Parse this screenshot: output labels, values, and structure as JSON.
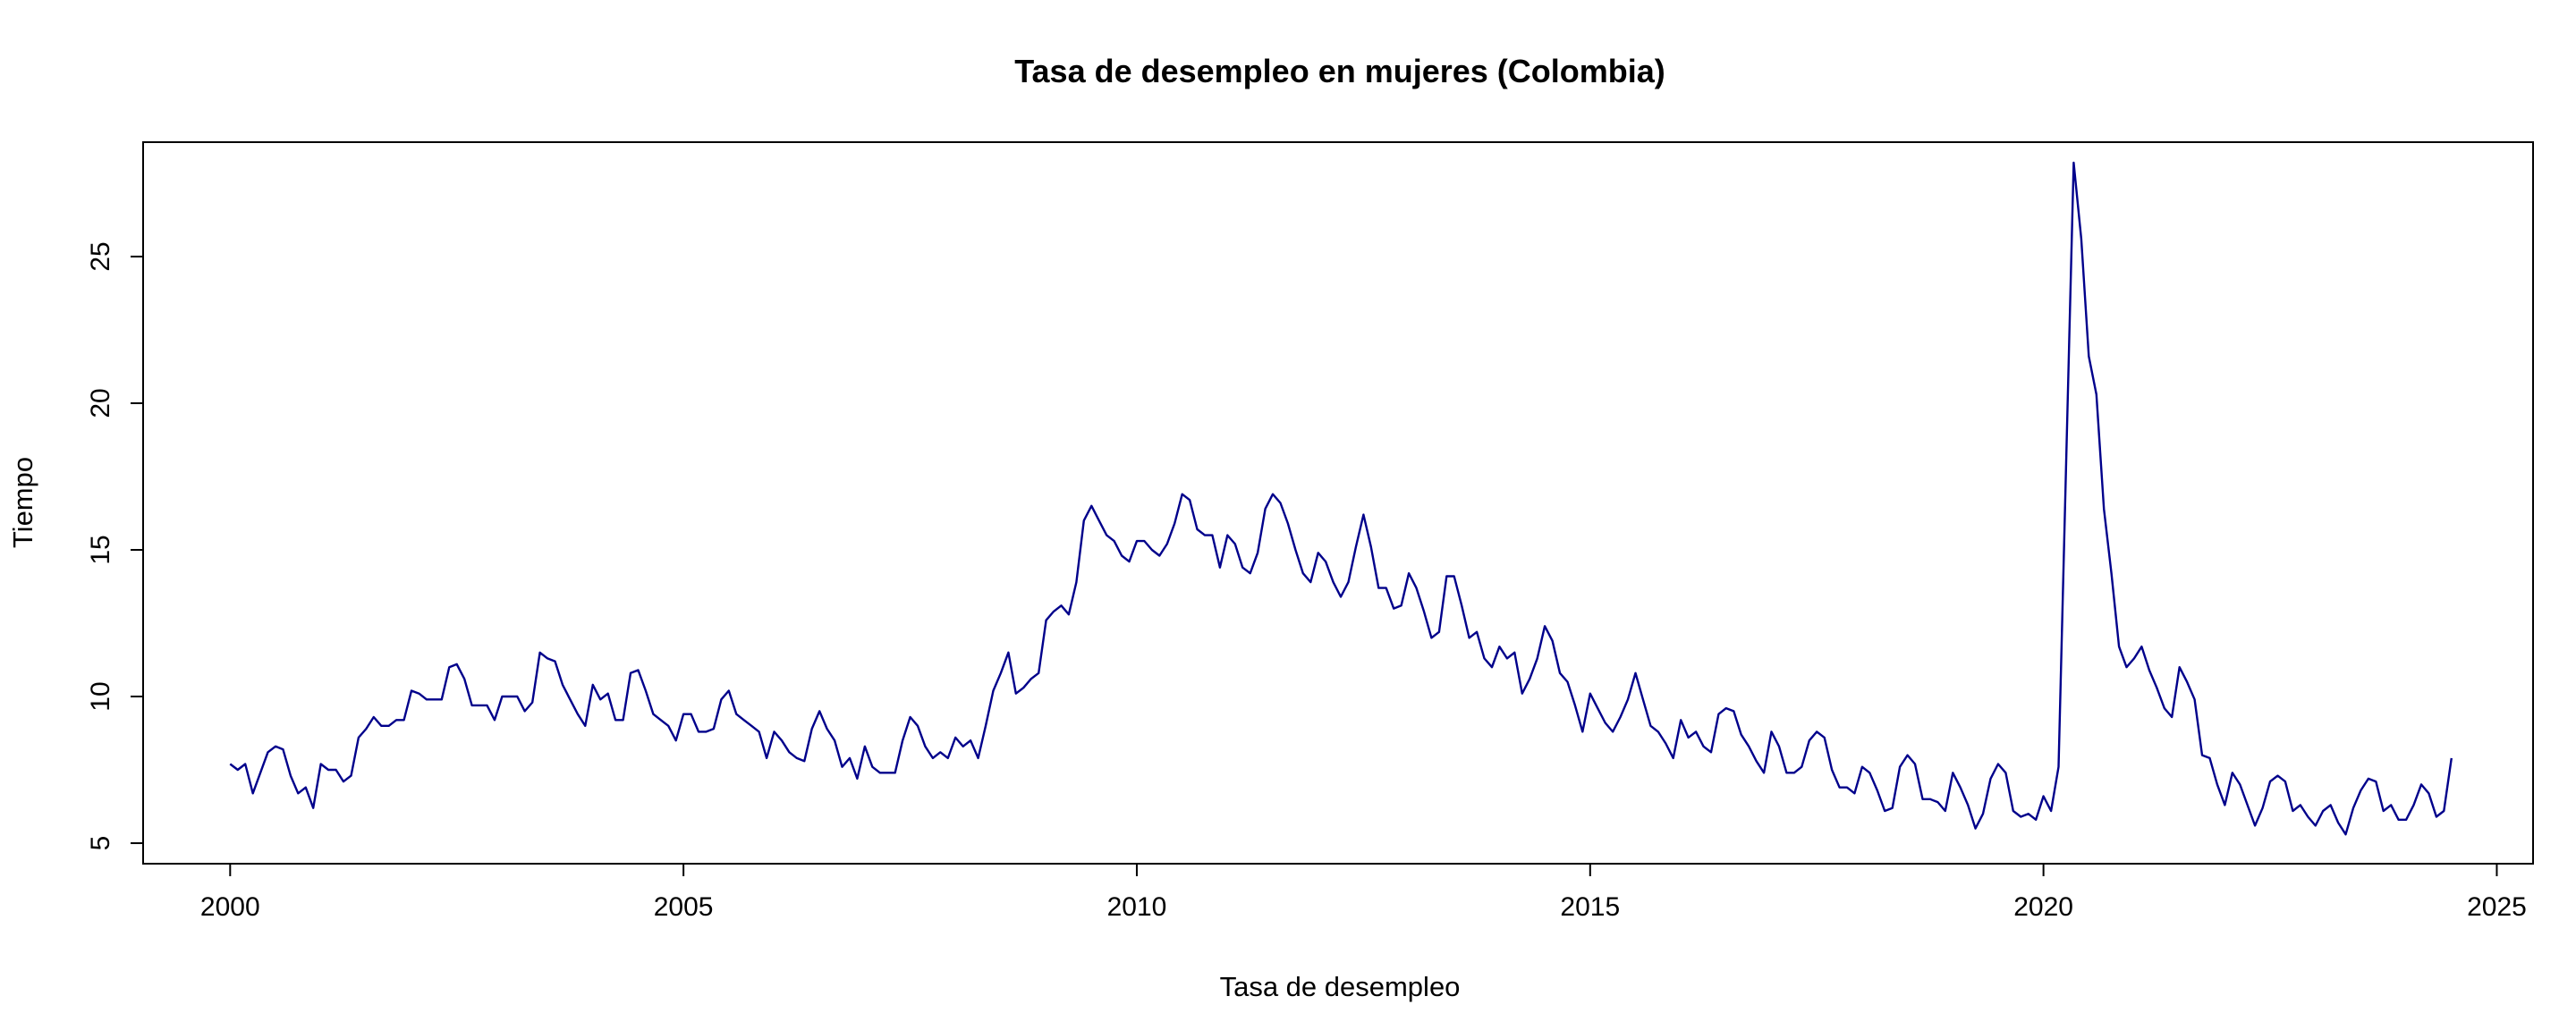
{
  "chart_data": {
    "type": "line",
    "title": "Tasa de desempleo en mujeres (Colombia)",
    "xlabel": "Tasa de desempleo",
    "ylabel": "Tiempo",
    "x_ticks": [
      2000,
      2005,
      2010,
      2015,
      2020,
      2025
    ],
    "y_ticks": [
      5,
      10,
      15,
      20,
      25
    ],
    "xlim": [
      1999.04,
      2025.4
    ],
    "ylim": [
      4.3,
      28.9
    ],
    "grid": false,
    "legend": "none",
    "line_color": "#00008b",
    "series": [
      {
        "start": 2000.0,
        "frequency": "monthly",
        "values": [
          7.7,
          7.5,
          7.7,
          6.7,
          7.4,
          8.1,
          8.3,
          8.2,
          7.3,
          6.7,
          6.9,
          6.2,
          7.7,
          7.5,
          7.5,
          7.1,
          7.3,
          8.6,
          8.9,
          9.3,
          9.0,
          9.0,
          9.2,
          9.2,
          10.2,
          10.1,
          9.9,
          9.9,
          9.9,
          11.0,
          11.1,
          10.6,
          9.7,
          9.7,
          9.7,
          9.2,
          10.0,
          10.0,
          10.0,
          9.5,
          9.8,
          11.5,
          11.3,
          11.2,
          10.4,
          9.9,
          9.4,
          9.0,
          10.4,
          9.9,
          10.1,
          9.2,
          9.2,
          10.8,
          10.9,
          10.2,
          9.4,
          9.2,
          9.0,
          8.5,
          9.4,
          9.4,
          8.8,
          8.8,
          8.9,
          9.9,
          10.2,
          9.4,
          9.2,
          9.0,
          8.8,
          7.9,
          8.8,
          8.5,
          8.1,
          7.9,
          7.8,
          8.9,
          9.5,
          8.9,
          8.5,
          7.6,
          7.9,
          7.2,
          8.3,
          7.6,
          7.4,
          7.4,
          7.4,
          8.5,
          9.3,
          9.0,
          8.3,
          7.9,
          8.1,
          7.9,
          8.6,
          8.3,
          8.5,
          7.9,
          9.0,
          10.2,
          10.8,
          11.5,
          10.1,
          10.3,
          10.6,
          10.8,
          12.6,
          12.9,
          13.1,
          12.8,
          13.9,
          16.0,
          16.5,
          16.0,
          15.5,
          15.3,
          14.8,
          14.6,
          15.3,
          15.3,
          15.0,
          14.8,
          15.2,
          15.9,
          16.9,
          16.7,
          15.7,
          15.5,
          15.5,
          14.4,
          15.5,
          15.2,
          14.4,
          14.2,
          14.9,
          16.4,
          16.9,
          16.6,
          15.9,
          15.0,
          14.2,
          13.9,
          14.9,
          14.6,
          13.9,
          13.4,
          13.9,
          15.1,
          16.2,
          15.1,
          13.7,
          13.7,
          13.0,
          13.1,
          14.2,
          13.7,
          12.9,
          12.0,
          12.2,
          14.1,
          14.1,
          13.1,
          12.0,
          12.2,
          11.3,
          11.0,
          11.7,
          11.3,
          11.5,
          10.1,
          10.6,
          11.3,
          12.4,
          11.9,
          10.8,
          10.5,
          9.7,
          8.8,
          10.1,
          9.6,
          9.1,
          8.8,
          9.3,
          9.9,
          10.8,
          9.9,
          9.0,
          8.8,
          8.4,
          7.9,
          9.2,
          8.6,
          8.8,
          8.3,
          8.1,
          9.4,
          9.6,
          9.5,
          8.7,
          8.3,
          7.8,
          7.4,
          8.8,
          8.3,
          7.4,
          7.4,
          7.6,
          8.5,
          8.8,
          8.6,
          7.5,
          6.9,
          6.9,
          6.7,
          7.6,
          7.4,
          6.8,
          6.1,
          6.2,
          7.6,
          8.0,
          7.7,
          6.5,
          6.5,
          6.4,
          6.1,
          7.4,
          6.9,
          6.3,
          5.5,
          6.0,
          7.2,
          7.7,
          7.4,
          6.1,
          5.9,
          6.0,
          5.8,
          6.6,
          6.1,
          7.6,
          18.0,
          28.2,
          25.6,
          21.6,
          20.3,
          16.4,
          14.2,
          11.7,
          11.0,
          11.3,
          11.7,
          10.9,
          10.3,
          9.6,
          9.3,
          11.0,
          10.5,
          9.9,
          8.0,
          7.9,
          7.0,
          6.3,
          7.4,
          7.0,
          6.3,
          5.6,
          6.2,
          7.1,
          7.3,
          7.1,
          6.1,
          6.3,
          5.9,
          5.6,
          6.1,
          6.3,
          5.7,
          5.3,
          6.2,
          6.8,
          7.2,
          7.1,
          6.1,
          6.3,
          5.8,
          5.8,
          6.3,
          7.0,
          6.7,
          5.9,
          6.1,
          7.9
        ]
      }
    ]
  }
}
